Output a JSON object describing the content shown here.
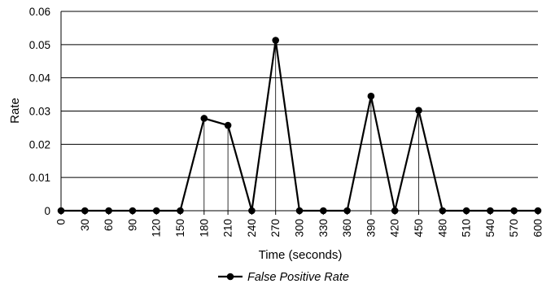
{
  "chart_data": {
    "type": "line",
    "title": "",
    "xlabel": "Time (seconds)",
    "ylabel": "Rate",
    "x": [
      0,
      30,
      60,
      90,
      120,
      150,
      180,
      210,
      240,
      270,
      300,
      330,
      360,
      390,
      420,
      450,
      480,
      510,
      540,
      570,
      600
    ],
    "xlim": [
      0,
      600
    ],
    "ylim": [
      0,
      0.06
    ],
    "x_ticks": [
      "0",
      "30",
      "60",
      "90",
      "120",
      "150",
      "180",
      "210",
      "240",
      "270",
      "300",
      "330",
      "360",
      "390",
      "420",
      "450",
      "480",
      "510",
      "540",
      "570",
      "600"
    ],
    "y_ticks": [
      "0",
      "0.01",
      "0.02",
      "0.03",
      "0.04",
      "0.05",
      "0.06"
    ],
    "grid": "horizontal",
    "drop_lines": true,
    "legend_position": "bottom",
    "series": [
      {
        "name": "False Positive Rate",
        "color": "#000000",
        "marker": "circle",
        "values": [
          0,
          0,
          0,
          0,
          0,
          0,
          0.0278,
          0.0257,
          0,
          0.0513,
          0,
          0,
          0,
          0.0345,
          0,
          0.0302,
          0,
          0,
          0,
          0,
          0
        ]
      }
    ]
  }
}
